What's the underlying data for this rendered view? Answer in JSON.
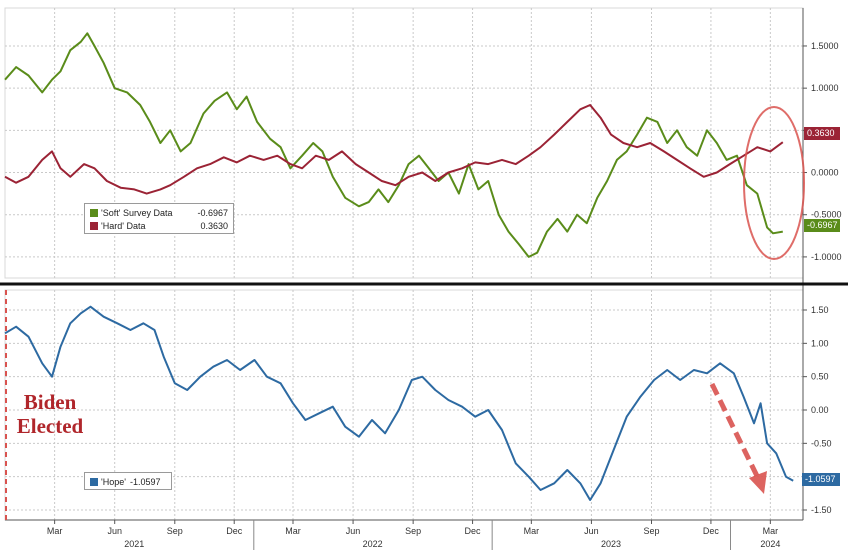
{
  "colors": {
    "soft": "#5a8c1a",
    "hard": "#9b2335",
    "hope": "#2d6aa2",
    "highlight": "#d9534f",
    "grid": "#c9c9c9"
  },
  "chart_data": [
    {
      "type": "line",
      "panel": "top",
      "x_range": [
        "2020-12-15",
        "2024-04-20"
      ],
      "ylim": [
        -1.25,
        1.95
      ],
      "yticks": [
        1.5,
        1.0,
        0.5,
        0.0,
        -0.5,
        -1.0
      ],
      "ytick_labels": [
        "1.5000",
        "1.0000",
        "0.5000",
        "0.0000",
        "-0.5000",
        "-1.0000"
      ],
      "grid": true,
      "legend_position": "lower-left",
      "series": [
        {
          "name": "'Soft' Survey Data",
          "last_value_label": "-0.6967",
          "tag_label": "-0.6967",
          "points": [
            [
              "2020-12-15",
              1.1
            ],
            [
              "2021-01-01",
              1.25
            ],
            [
              "2021-01-20",
              1.15
            ],
            [
              "2021-02-10",
              0.95
            ],
            [
              "2021-02-25",
              1.1
            ],
            [
              "2021-03-10",
              1.2
            ],
            [
              "2021-03-25",
              1.45
            ],
            [
              "2021-04-10",
              1.55
            ],
            [
              "2021-04-20",
              1.65
            ],
            [
              "2021-05-01",
              1.5
            ],
            [
              "2021-05-15",
              1.3
            ],
            [
              "2021-06-01",
              1.0
            ],
            [
              "2021-06-20",
              0.95
            ],
            [
              "2021-07-10",
              0.8
            ],
            [
              "2021-07-25",
              0.6
            ],
            [
              "2021-08-10",
              0.35
            ],
            [
              "2021-08-25",
              0.5
            ],
            [
              "2021-09-10",
              0.25
            ],
            [
              "2021-09-25",
              0.35
            ],
            [
              "2021-10-15",
              0.7
            ],
            [
              "2021-11-01",
              0.85
            ],
            [
              "2021-11-20",
              0.95
            ],
            [
              "2021-12-05",
              0.75
            ],
            [
              "2021-12-20",
              0.9
            ],
            [
              "2022-01-05",
              0.6
            ],
            [
              "2022-01-25",
              0.4
            ],
            [
              "2022-02-10",
              0.3
            ],
            [
              "2022-02-25",
              0.05
            ],
            [
              "2022-03-15",
              0.2
            ],
            [
              "2022-04-01",
              0.35
            ],
            [
              "2022-04-15",
              0.25
            ],
            [
              "2022-05-01",
              -0.05
            ],
            [
              "2022-05-20",
              -0.3
            ],
            [
              "2022-06-10",
              -0.4
            ],
            [
              "2022-06-25",
              -0.35
            ],
            [
              "2022-07-10",
              -0.2
            ],
            [
              "2022-07-25",
              -0.35
            ],
            [
              "2022-08-10",
              -0.15
            ],
            [
              "2022-08-25",
              0.1
            ],
            [
              "2022-09-10",
              0.2
            ],
            [
              "2022-09-25",
              0.05
            ],
            [
              "2022-10-10",
              -0.1
            ],
            [
              "2022-10-25",
              0.0
            ],
            [
              "2022-11-10",
              -0.25
            ],
            [
              "2022-11-25",
              0.1
            ],
            [
              "2022-12-10",
              -0.2
            ],
            [
              "2022-12-25",
              -0.1
            ],
            [
              "2023-01-10",
              -0.5
            ],
            [
              "2023-01-25",
              -0.7
            ],
            [
              "2023-02-10",
              -0.85
            ],
            [
              "2023-02-25",
              -1.0
            ],
            [
              "2023-03-10",
              -0.95
            ],
            [
              "2023-03-25",
              -0.7
            ],
            [
              "2023-04-10",
              -0.55
            ],
            [
              "2023-04-25",
              -0.7
            ],
            [
              "2023-05-10",
              -0.5
            ],
            [
              "2023-05-25",
              -0.6
            ],
            [
              "2023-06-10",
              -0.3
            ],
            [
              "2023-06-25",
              -0.1
            ],
            [
              "2023-07-10",
              0.15
            ],
            [
              "2023-07-25",
              0.25
            ],
            [
              "2023-08-10",
              0.45
            ],
            [
              "2023-08-25",
              0.65
            ],
            [
              "2023-09-10",
              0.6
            ],
            [
              "2023-09-25",
              0.35
            ],
            [
              "2023-10-10",
              0.5
            ],
            [
              "2023-10-25",
              0.3
            ],
            [
              "2023-11-10",
              0.2
            ],
            [
              "2023-11-25",
              0.5
            ],
            [
              "2023-12-10",
              0.35
            ],
            [
              "2023-12-25",
              0.15
            ],
            [
              "2024-01-10",
              0.2
            ],
            [
              "2024-01-25",
              -0.15
            ],
            [
              "2024-02-10",
              -0.25
            ],
            [
              "2024-02-25",
              -0.65
            ],
            [
              "2024-03-05",
              -0.72
            ],
            [
              "2024-03-20",
              -0.7
            ]
          ]
        },
        {
          "name": "'Hard' Data",
          "last_value_label": "0.3630",
          "tag_label": "0.3630",
          "points": [
            [
              "2020-12-15",
              -0.05
            ],
            [
              "2021-01-01",
              -0.12
            ],
            [
              "2021-01-20",
              -0.05
            ],
            [
              "2021-02-10",
              0.15
            ],
            [
              "2021-02-25",
              0.25
            ],
            [
              "2021-03-10",
              0.05
            ],
            [
              "2021-03-25",
              -0.05
            ],
            [
              "2021-04-15",
              0.1
            ],
            [
              "2021-05-01",
              0.05
            ],
            [
              "2021-05-20",
              -0.1
            ],
            [
              "2021-06-10",
              -0.18
            ],
            [
              "2021-07-01",
              -0.2
            ],
            [
              "2021-07-20",
              -0.25
            ],
            [
              "2021-08-10",
              -0.2
            ],
            [
              "2021-08-25",
              -0.15
            ],
            [
              "2021-09-15",
              -0.05
            ],
            [
              "2021-10-05",
              0.05
            ],
            [
              "2021-10-25",
              0.1
            ],
            [
              "2021-11-15",
              0.18
            ],
            [
              "2021-12-05",
              0.12
            ],
            [
              "2021-12-25",
              0.2
            ],
            [
              "2022-01-15",
              0.15
            ],
            [
              "2022-02-05",
              0.2
            ],
            [
              "2022-02-25",
              0.1
            ],
            [
              "2022-03-15",
              0.05
            ],
            [
              "2022-04-05",
              0.2
            ],
            [
              "2022-04-25",
              0.15
            ],
            [
              "2022-05-15",
              0.25
            ],
            [
              "2022-06-05",
              0.1
            ],
            [
              "2022-06-25",
              0.0
            ],
            [
              "2022-07-15",
              -0.1
            ],
            [
              "2022-08-05",
              -0.15
            ],
            [
              "2022-08-25",
              -0.05
            ],
            [
              "2022-09-15",
              0.0
            ],
            [
              "2022-10-05",
              -0.1
            ],
            [
              "2022-10-25",
              0.0
            ],
            [
              "2022-11-15",
              0.05
            ],
            [
              "2022-12-05",
              0.12
            ],
            [
              "2022-12-25",
              0.1
            ],
            [
              "2023-01-15",
              0.15
            ],
            [
              "2023-02-05",
              0.1
            ],
            [
              "2023-02-25",
              0.2
            ],
            [
              "2023-03-15",
              0.3
            ],
            [
              "2023-04-05",
              0.45
            ],
            [
              "2023-04-25",
              0.6
            ],
            [
              "2023-05-15",
              0.75
            ],
            [
              "2023-05-30",
              0.8
            ],
            [
              "2023-06-15",
              0.65
            ],
            [
              "2023-07-01",
              0.45
            ],
            [
              "2023-07-20",
              0.35
            ],
            [
              "2023-08-10",
              0.3
            ],
            [
              "2023-08-30",
              0.35
            ],
            [
              "2023-09-20",
              0.25
            ],
            [
              "2023-10-10",
              0.15
            ],
            [
              "2023-10-30",
              0.05
            ],
            [
              "2023-11-20",
              -0.05
            ],
            [
              "2023-12-10",
              0.0
            ],
            [
              "2023-12-30",
              0.1
            ],
            [
              "2024-01-20",
              0.2
            ],
            [
              "2024-02-10",
              0.3
            ],
            [
              "2024-03-01",
              0.25
            ],
            [
              "2024-03-20",
              0.36
            ]
          ]
        }
      ]
    },
    {
      "type": "line",
      "panel": "bottom",
      "x_range": [
        "2020-12-15",
        "2024-04-20"
      ],
      "ylim": [
        -1.65,
        1.8
      ],
      "yticks": [
        1.5,
        1.0,
        0.5,
        0.0,
        -0.5,
        -1.0,
        -1.5
      ],
      "ytick_labels": [
        "1.50",
        "1.00",
        "0.50",
        "0.00",
        "-0.50",
        "-1.00",
        "-1.50"
      ],
      "grid": true,
      "legend_position": "lower-left",
      "series": [
        {
          "name": "'Hope'",
          "last_value_label": "-1.0597",
          "tag_label": "-1.0597",
          "points": [
            [
              "2020-12-15",
              1.15
            ],
            [
              "2021-01-01",
              1.25
            ],
            [
              "2021-01-20",
              1.1
            ],
            [
              "2021-02-10",
              0.7
            ],
            [
              "2021-02-25",
              0.5
            ],
            [
              "2021-03-10",
              0.95
            ],
            [
              "2021-03-25",
              1.3
            ],
            [
              "2021-04-10",
              1.45
            ],
            [
              "2021-04-25",
              1.55
            ],
            [
              "2021-05-15",
              1.4
            ],
            [
              "2021-06-05",
              1.3
            ],
            [
              "2021-06-25",
              1.2
            ],
            [
              "2021-07-15",
              1.3
            ],
            [
              "2021-08-01",
              1.2
            ],
            [
              "2021-08-15",
              0.8
            ],
            [
              "2021-09-01",
              0.4
            ],
            [
              "2021-09-20",
              0.3
            ],
            [
              "2021-10-10",
              0.5
            ],
            [
              "2021-10-30",
              0.65
            ],
            [
              "2021-11-20",
              0.75
            ],
            [
              "2021-12-10",
              0.6
            ],
            [
              "2022-01-01",
              0.75
            ],
            [
              "2022-01-20",
              0.5
            ],
            [
              "2022-02-10",
              0.4
            ],
            [
              "2022-03-01",
              0.1
            ],
            [
              "2022-03-20",
              -0.15
            ],
            [
              "2022-04-10",
              -0.05
            ],
            [
              "2022-05-01",
              0.05
            ],
            [
              "2022-05-20",
              -0.25
            ],
            [
              "2022-06-10",
              -0.4
            ],
            [
              "2022-06-30",
              -0.15
            ],
            [
              "2022-07-20",
              -0.35
            ],
            [
              "2022-08-10",
              0.0
            ],
            [
              "2022-08-30",
              0.45
            ],
            [
              "2022-09-15",
              0.5
            ],
            [
              "2022-10-05",
              0.3
            ],
            [
              "2022-10-25",
              0.15
            ],
            [
              "2022-11-15",
              0.05
            ],
            [
              "2022-12-05",
              -0.1
            ],
            [
              "2022-12-25",
              0.0
            ],
            [
              "2023-01-15",
              -0.3
            ],
            [
              "2023-02-05",
              -0.8
            ],
            [
              "2023-02-25",
              -1.0
            ],
            [
              "2023-03-15",
              -1.2
            ],
            [
              "2023-04-05",
              -1.1
            ],
            [
              "2023-04-25",
              -0.9
            ],
            [
              "2023-05-15",
              -1.1
            ],
            [
              "2023-05-30",
              -1.35
            ],
            [
              "2023-06-15",
              -1.1
            ],
            [
              "2023-07-05",
              -0.6
            ],
            [
              "2023-07-25",
              -0.1
            ],
            [
              "2023-08-15",
              0.2
            ],
            [
              "2023-09-05",
              0.45
            ],
            [
              "2023-09-25",
              0.6
            ],
            [
              "2023-10-15",
              0.45
            ],
            [
              "2023-11-05",
              0.6
            ],
            [
              "2023-11-25",
              0.55
            ],
            [
              "2023-12-15",
              0.7
            ],
            [
              "2024-01-05",
              0.55
            ],
            [
              "2024-01-20",
              0.2
            ],
            [
              "2024-02-05",
              -0.2
            ],
            [
              "2024-02-15",
              0.1
            ],
            [
              "2024-02-25",
              -0.5
            ],
            [
              "2024-03-10",
              -0.65
            ],
            [
              "2024-03-25",
              -1.0
            ],
            [
              "2024-04-05",
              -1.06
            ]
          ]
        }
      ]
    }
  ],
  "x_axis": {
    "month_ticks": [
      {
        "label": "Mar",
        "date": "2021-03-01"
      },
      {
        "label": "Jun",
        "date": "2021-06-01"
      },
      {
        "label": "Sep",
        "date": "2021-09-01"
      },
      {
        "label": "Dec",
        "date": "2021-12-01"
      },
      {
        "label": "Mar",
        "date": "2022-03-01"
      },
      {
        "label": "Jun",
        "date": "2022-06-01"
      },
      {
        "label": "Sep",
        "date": "2022-09-01"
      },
      {
        "label": "Dec",
        "date": "2022-12-01"
      },
      {
        "label": "Mar",
        "date": "2023-03-01"
      },
      {
        "label": "Jun",
        "date": "2023-06-01"
      },
      {
        "label": "Sep",
        "date": "2023-09-01"
      },
      {
        "label": "Dec",
        "date": "2023-12-01"
      },
      {
        "label": "Mar",
        "date": "2024-03-01"
      }
    ],
    "year_ticks": [
      {
        "label": "2021",
        "date": "2021-07-01"
      },
      {
        "label": "2022",
        "date": "2022-07-01"
      },
      {
        "label": "2023",
        "date": "2023-07-01"
      },
      {
        "label": "2024",
        "date": "2024-03-01"
      }
    ],
    "year_separators": [
      "2021-12-31",
      "2022-12-31",
      "2023-12-31"
    ]
  },
  "annotation": {
    "line1": "Biden",
    "line2": "Elected"
  },
  "legend_top": {
    "rows": [
      {
        "name": "'Soft' Survey Data",
        "value": "-0.6967"
      },
      {
        "name": "'Hard' Data",
        "value": "0.3630"
      }
    ]
  },
  "legend_bottom": {
    "rows": [
      {
        "name": "'Hope'",
        "value": "-1.0597"
      }
    ]
  },
  "tags": {
    "hard": "0.3630",
    "soft": "-0.6967",
    "hope": "-1.0597"
  }
}
